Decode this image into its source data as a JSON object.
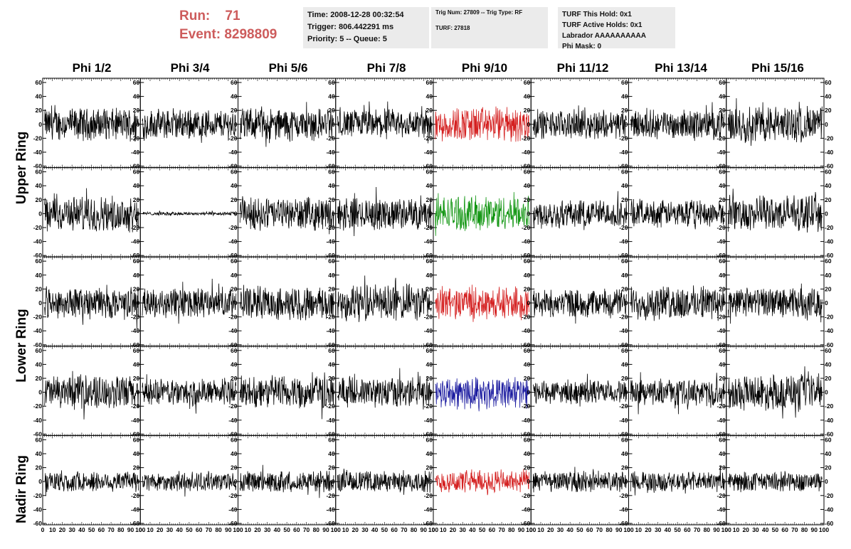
{
  "run": {
    "run_label": "Run:",
    "run_number": "71",
    "event_label": "Event:",
    "event_number": "8298809"
  },
  "info_time": {
    "time": "Time: 2008-12-28 00:32:54",
    "trigger": "Trigger: 806.442291 ms",
    "priority": "Priority: 5 -- Queue: 5"
  },
  "info_trig": {
    "trig": "Trig Num: 27809 -- Trig Type: RF",
    "turf": "TURF: 27818"
  },
  "info_turf": {
    "hold": "TURF This Hold: 0x1",
    "active": "TURF Active Holds: 0x1",
    "labrador": "Labrador AAAAAAAAAA",
    "phimask": "Phi Mask: 0"
  },
  "columns": [
    "Phi 1/2",
    "Phi 3/4",
    "Phi 5/6",
    "Phi 7/8",
    "Phi 9/10",
    "Phi 11/12",
    "Phi 13/14",
    "Phi 15/16"
  ],
  "ring_labels": {
    "upper": "Upper Ring",
    "lower": "Lower Ring",
    "nadir": "Nadir Ring"
  },
  "axes": {
    "y_ticks": [
      "60",
      "40",
      "20",
      "0",
      "-20",
      "-40",
      "-60"
    ],
    "x_ticks": [
      "0",
      "10",
      "20",
      "30",
      "40",
      "50",
      "60",
      "70",
      "80",
      "90",
      "100"
    ],
    "y_range": [
      -60,
      60
    ],
    "x_range": [
      0,
      100
    ]
  },
  "colors": {
    "default": "#000000",
    "red": "#d42020",
    "green": "#129612",
    "blue": "#1c1ca0",
    "title_red": "#cd5c5c",
    "box_bg": "#ebebeb"
  },
  "trace_colors": [
    [
      "default",
      "default",
      "default",
      "default",
      "red",
      "default",
      "default",
      "default"
    ],
    [
      "default",
      "default",
      "default",
      "default",
      "green",
      "default",
      "default",
      "default"
    ],
    [
      "default",
      "default",
      "default",
      "default",
      "red",
      "default",
      "default",
      "default"
    ],
    [
      "default",
      "default",
      "default",
      "default",
      "blue",
      "default",
      "default",
      "default"
    ],
    [
      "default",
      "default",
      "default",
      "default",
      "red",
      "default",
      "default",
      "default"
    ]
  ],
  "trace_amplitude": [
    [
      0.9,
      0.85,
      0.9,
      0.85,
      1.0,
      0.8,
      0.8,
      1.05
    ],
    [
      1.0,
      0.1,
      0.9,
      0.9,
      1.0,
      0.8,
      0.75,
      1.0
    ],
    [
      0.9,
      0.85,
      0.95,
      1.05,
      0.9,
      0.8,
      0.95,
      0.85
    ],
    [
      0.95,
      0.75,
      0.95,
      0.85,
      0.9,
      0.65,
      0.75,
      1.0
    ],
    [
      0.6,
      0.55,
      0.6,
      0.6,
      0.65,
      0.6,
      0.55,
      0.55
    ]
  ]
}
